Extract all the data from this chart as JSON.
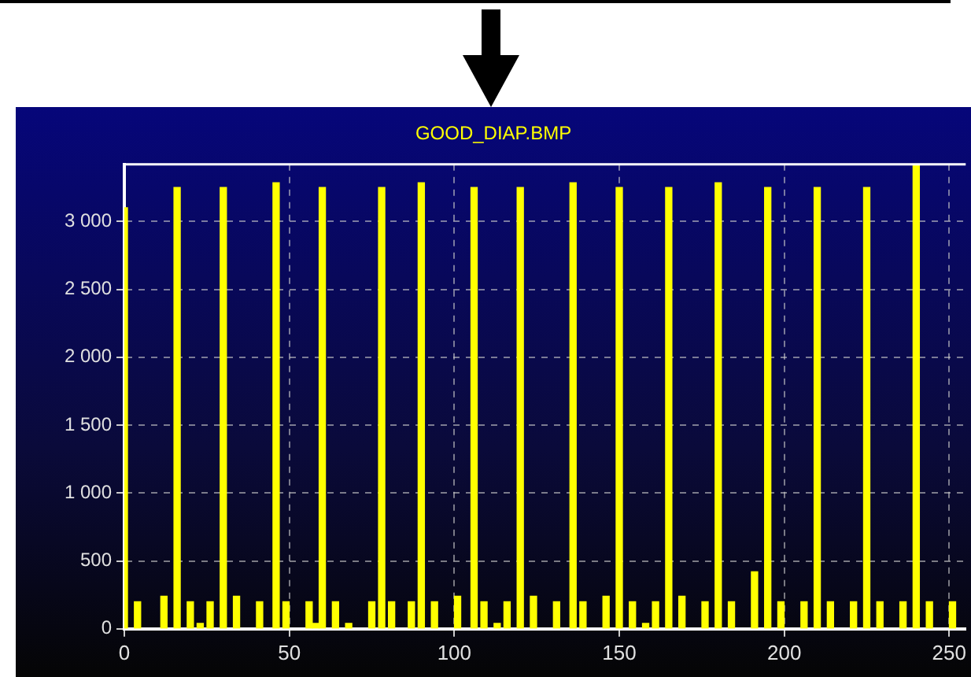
{
  "chart_data": {
    "type": "bar",
    "title": "GOOD_DIAP.BMP",
    "x": [
      0,
      4,
      12,
      16,
      20,
      23,
      26,
      30,
      34,
      41,
      46,
      49,
      56,
      58,
      60,
      64,
      68,
      75,
      78,
      81,
      87,
      90,
      94,
      101,
      106,
      109,
      113,
      116,
      120,
      124,
      131,
      136,
      139,
      146,
      150,
      154,
      158,
      161,
      165,
      169,
      176,
      180,
      184,
      191,
      195,
      199,
      206,
      210,
      214,
      221,
      225,
      229,
      236,
      240,
      244,
      251
    ],
    "values": [
      3100,
      200,
      240,
      3250,
      200,
      40,
      200,
      3250,
      240,
      200,
      3285,
      200,
      200,
      40,
      3250,
      200,
      40,
      200,
      3250,
      200,
      200,
      3285,
      200,
      240,
      3250,
      200,
      40,
      200,
      3250,
      240,
      200,
      3285,
      200,
      240,
      3250,
      200,
      40,
      200,
      3250,
      240,
      200,
      3285,
      200,
      420,
      3250,
      200,
      200,
      3250,
      200,
      200,
      3250,
      200,
      200,
      3420,
      200,
      200
    ],
    "color": "#ffff00",
    "xlim": [
      0,
      255
    ],
    "xticks": [
      0,
      50,
      100,
      150,
      200,
      250
    ],
    "ylim": [
      0,
      3420
    ],
    "yticks": [
      0,
      500,
      {
        "value": 1000,
        "label": "1 000"
      },
      {
        "value": 1500,
        "label": "1 500"
      },
      {
        "value": 2000,
        "label": "2 000"
      },
      {
        "value": 2500,
        "label": "2 500"
      },
      {
        "value": 3000,
        "label": "3 000"
      }
    ],
    "grid": true
  }
}
